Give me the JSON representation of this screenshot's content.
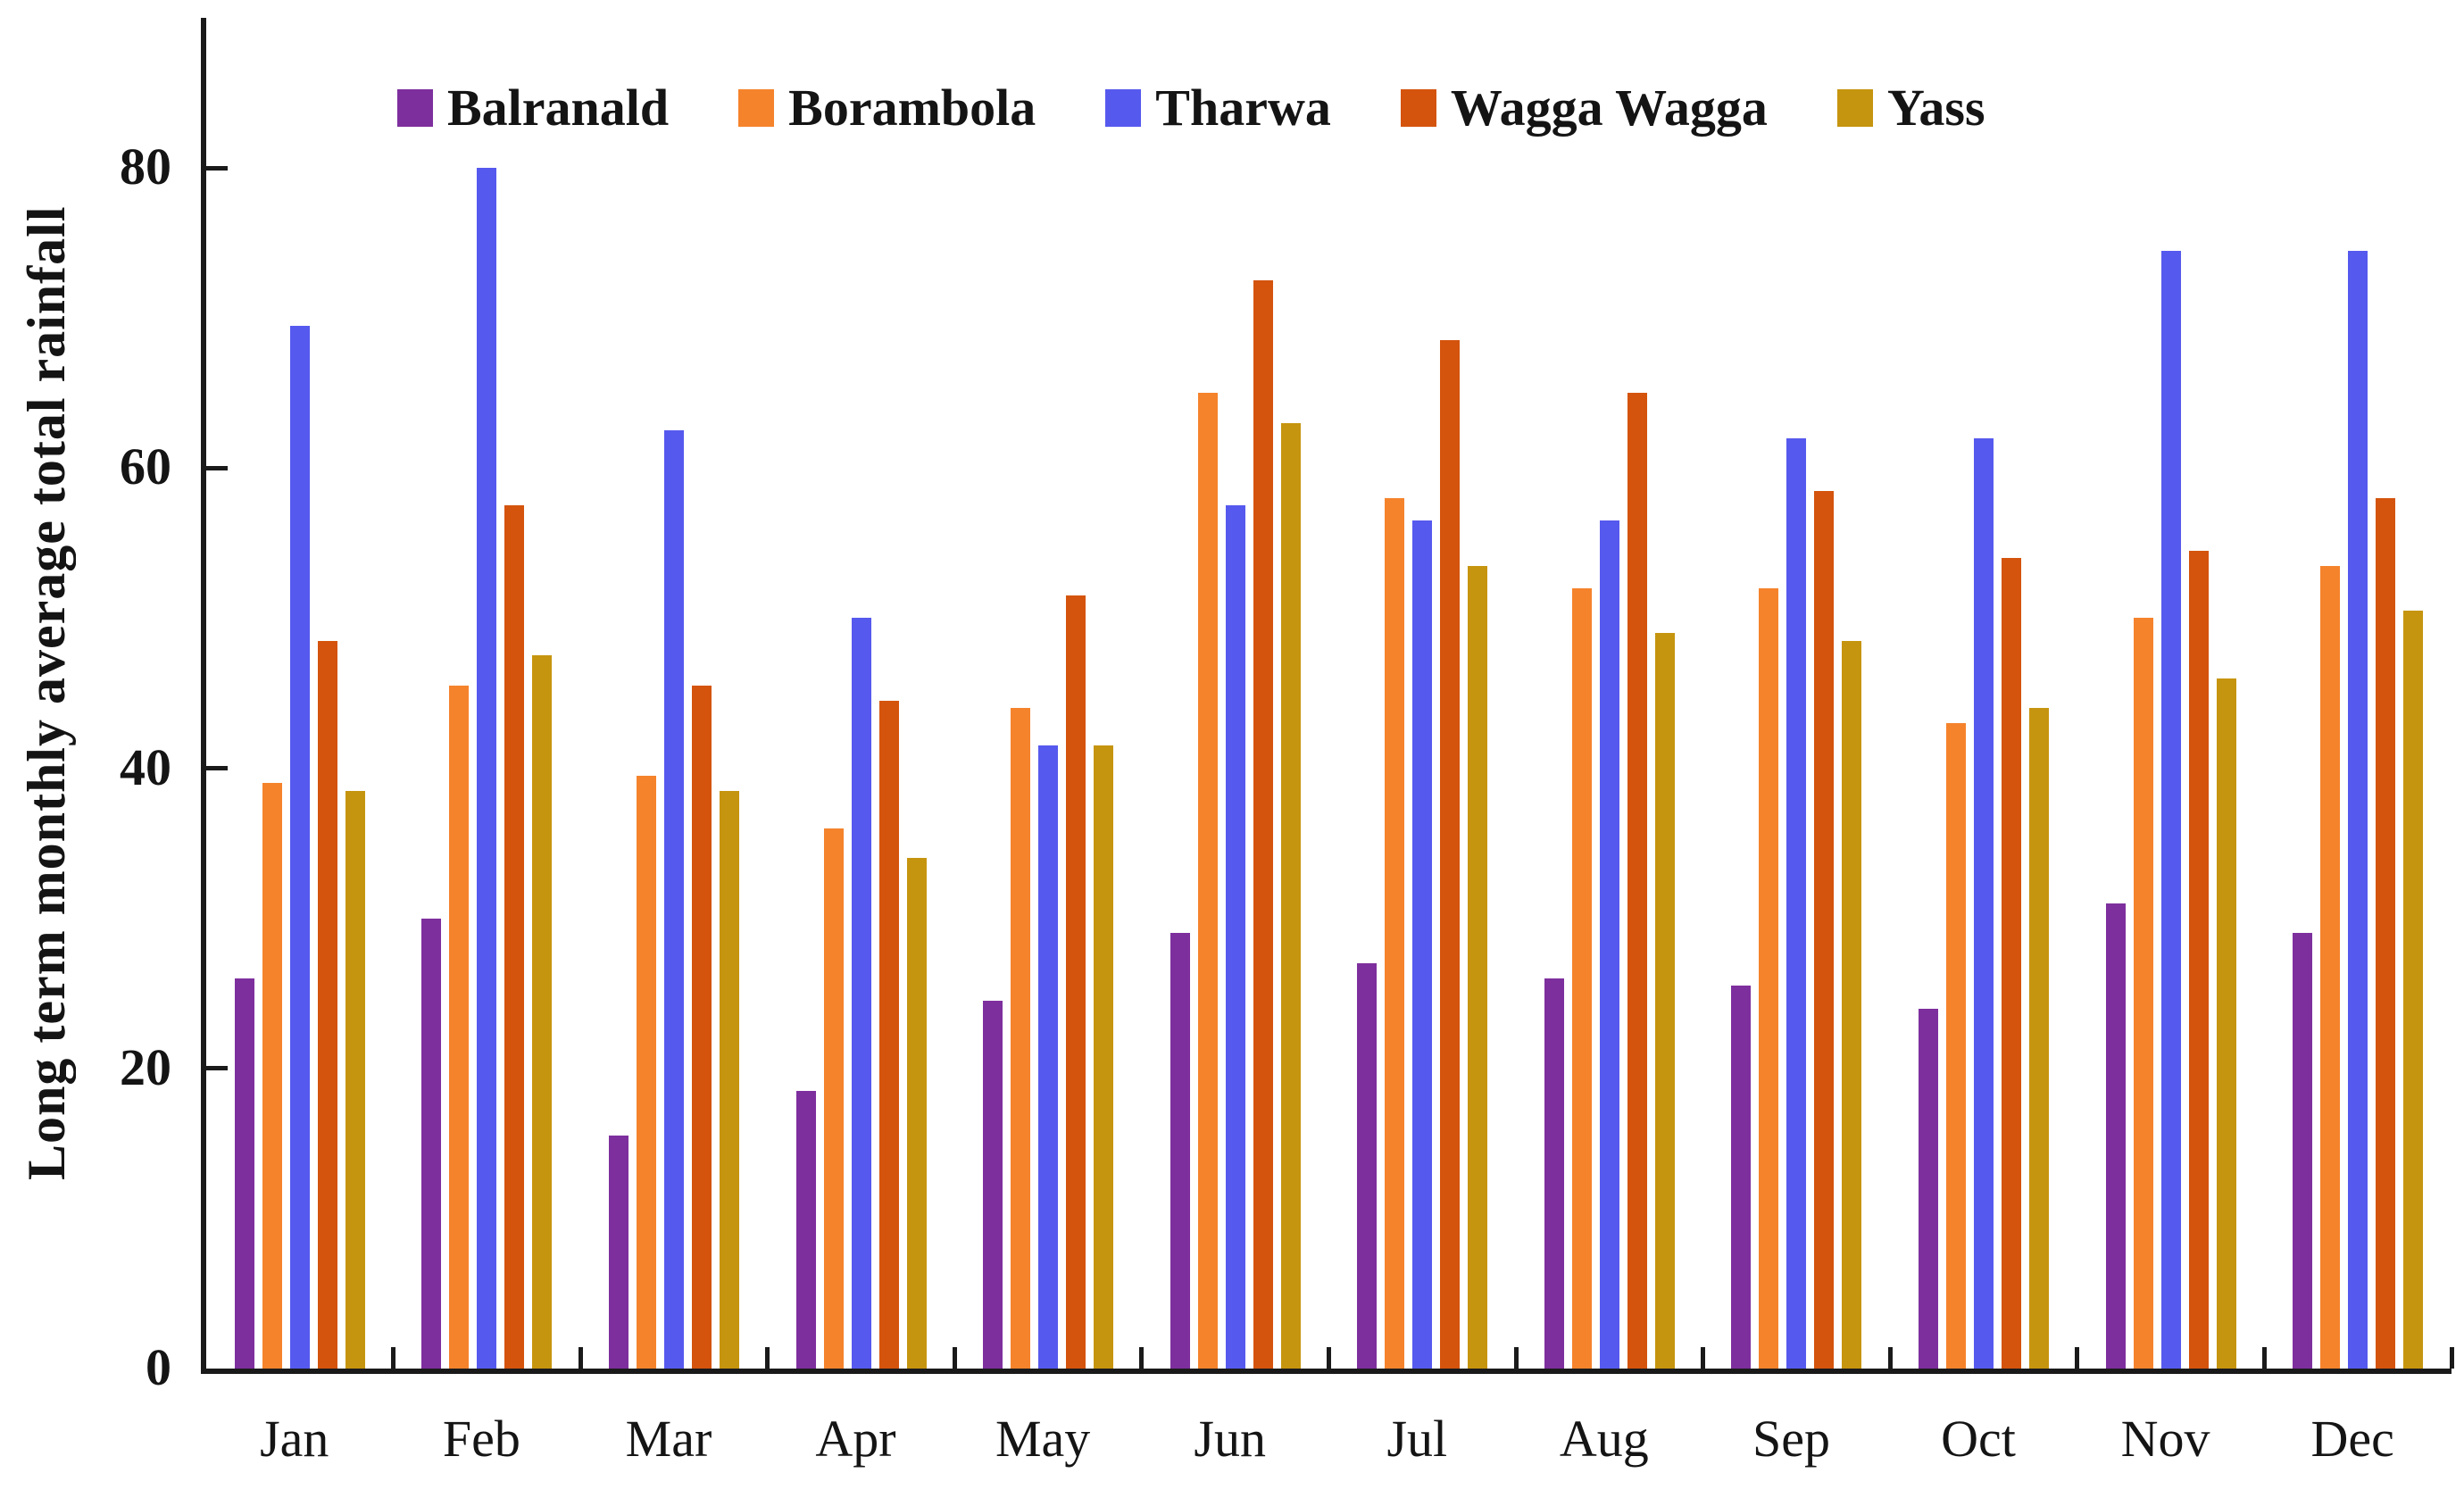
{
  "chart_data": {
    "type": "bar",
    "title": "",
    "ylabel": "Long term monthly average total rainfall",
    "xlabel": "",
    "ylim": [
      0,
      90
    ],
    "yticks": [
      0,
      20,
      40,
      60,
      80
    ],
    "grid": false,
    "legend_position": "top-inside",
    "categories": [
      "Jan",
      "Feb",
      "Mar",
      "Apr",
      "May",
      "Jun",
      "Jul",
      "Aug",
      "Sep",
      "Oct",
      "Nov",
      "Dec"
    ],
    "series": [
      {
        "name": "Balranald",
        "color": "#7E2F9E",
        "values": [
          26,
          30,
          15.5,
          18.5,
          24.5,
          29,
          27,
          26,
          25.5,
          24,
          31,
          29
        ]
      },
      {
        "name": "Borambola",
        "color": "#F5832C",
        "values": [
          39,
          45.5,
          39.5,
          36,
          44,
          65,
          58,
          52,
          52,
          43,
          50,
          53.5
        ]
      },
      {
        "name": "Tharwa",
        "color": "#5659EE",
        "values": [
          69.5,
          80,
          62.5,
          50,
          41.5,
          57.5,
          56.5,
          56.5,
          62,
          62,
          74.5,
          74.5
        ]
      },
      {
        "name": "Wagga Wagga",
        "color": "#D4540D",
        "values": [
          48.5,
          57.5,
          45.5,
          44.5,
          51.5,
          72.5,
          68.5,
          65,
          58.5,
          54,
          54.5,
          58
        ]
      },
      {
        "name": "Yass",
        "color": "#C6950F",
        "values": [
          38.5,
          47.5,
          38.5,
          34,
          41.5,
          63,
          53.5,
          49,
          48.5,
          44,
          46,
          50.5
        ]
      }
    ]
  },
  "axis": {
    "tick_color": "#1a1a1a",
    "text_color": "#141414"
  }
}
